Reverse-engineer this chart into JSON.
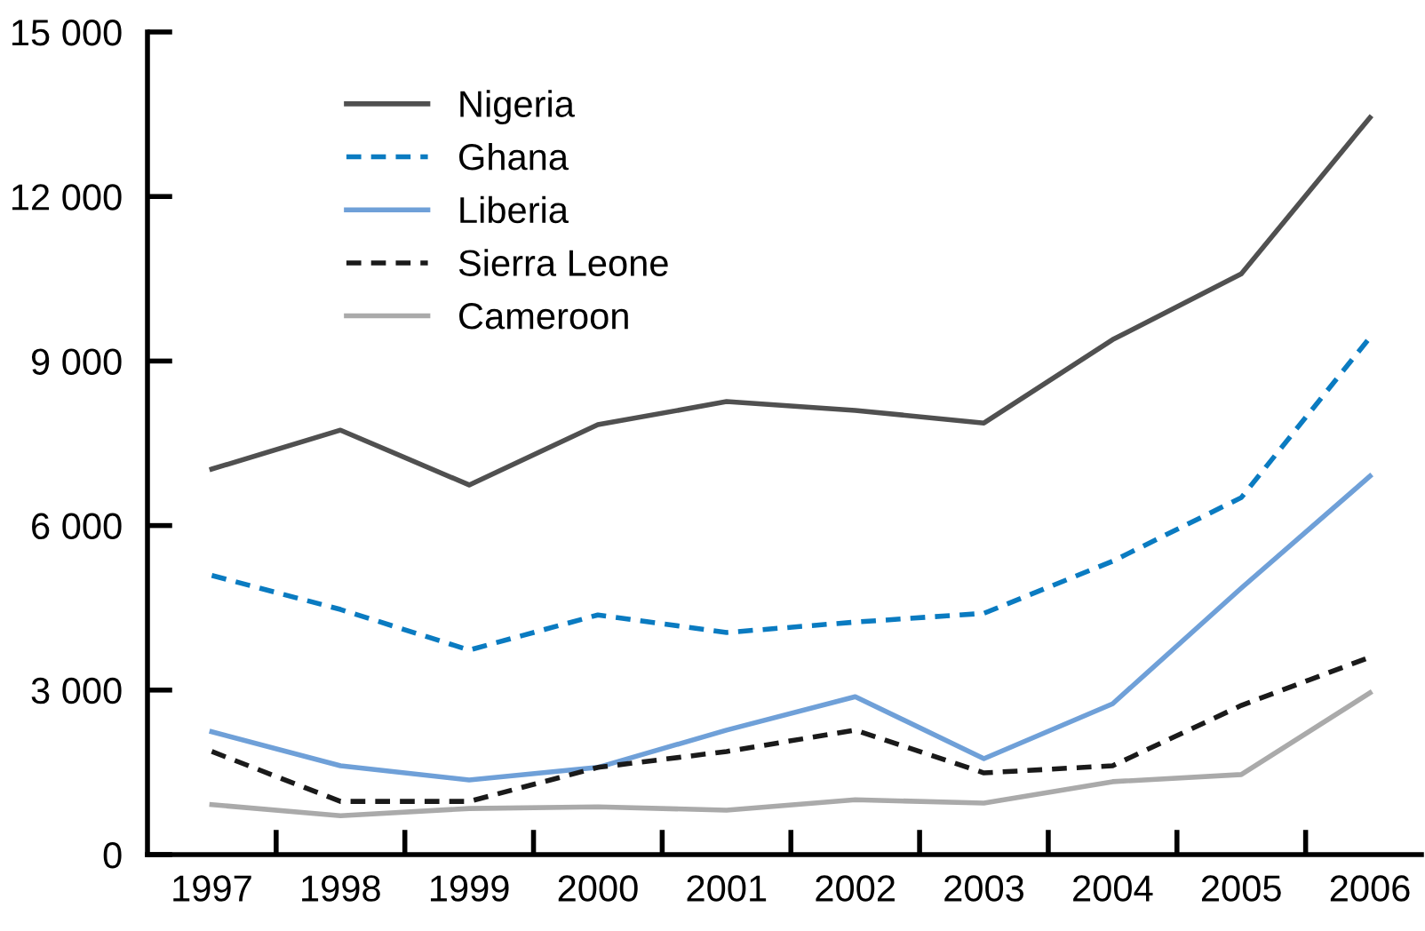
{
  "chart_data": {
    "type": "line",
    "x": [
      1997,
      1998,
      1999,
      2000,
      2001,
      2002,
      2003,
      2004,
      2005,
      2006
    ],
    "xlim": [
      1996.5,
      2006.4
    ],
    "xticks": [
      {
        "value": 1997,
        "label": "1997"
      },
      {
        "value": 1998,
        "label": "1998"
      },
      {
        "value": 1999,
        "label": "1999"
      },
      {
        "value": 2000,
        "label": "2000"
      },
      {
        "value": 2001,
        "label": "2001"
      },
      {
        "value": 2002,
        "label": "2002"
      },
      {
        "value": 2003,
        "label": "2003"
      },
      {
        "value": 2004,
        "label": "2004"
      },
      {
        "value": 2005,
        "label": "2005"
      },
      {
        "value": 2006,
        "label": "2006"
      },
      {
        "value": 1997.5,
        "label": null
      },
      {
        "value": 1998.5,
        "label": null
      },
      {
        "value": 1999.5,
        "label": null
      },
      {
        "value": 2000.5,
        "label": null
      },
      {
        "value": 2001.5,
        "label": null
      },
      {
        "value": 2002.5,
        "label": null
      },
      {
        "value": 2003.5,
        "label": null
      },
      {
        "value": 2004.5,
        "label": null
      },
      {
        "value": 2005.5,
        "label": null
      }
    ],
    "ylim": [
      0,
      15000
    ],
    "yticks": [
      {
        "value": 0,
        "label": "0"
      },
      {
        "value": 3000,
        "label": "3 000"
      },
      {
        "value": 6000,
        "label": "6 000"
      },
      {
        "value": 9000,
        "label": "9 000"
      },
      {
        "value": 12000,
        "label": "12 000"
      },
      {
        "value": 15000,
        "label": "15 000"
      }
    ],
    "grid": false,
    "legend": "top left",
    "series": [
      {
        "name": "Nigeria",
        "color": "#505050",
        "line_style": "solid",
        "values": [
          7030,
          7740,
          6740,
          7840,
          8260,
          8100,
          7870,
          9390,
          10590,
          13440
        ]
      },
      {
        "name": "Ghana",
        "color": "#0a7bc1",
        "line_style": "dashed",
        "values": [
          5090,
          4470,
          3730,
          4370,
          4050,
          4240,
          4400,
          5350,
          6510,
          9430
        ]
      },
      {
        "name": "Liberia",
        "color": "#6fa0d8",
        "line_style": "solid",
        "values": [
          2240,
          1620,
          1360,
          1590,
          2270,
          2880,
          1750,
          2750,
          4860,
          6900
        ]
      },
      {
        "name": "Sierra Leone",
        "color": "#1a1a1a",
        "line_style": "dashed",
        "values": [
          1880,
          970,
          970,
          1590,
          1880,
          2270,
          1490,
          1620,
          2720,
          3600
        ]
      },
      {
        "name": "Cameroon",
        "color": "#aaaaaa",
        "line_style": "solid",
        "values": [
          910,
          710,
          840,
          870,
          810,
          1000,
          940,
          1330,
          1460,
          2950
        ]
      }
    ]
  }
}
